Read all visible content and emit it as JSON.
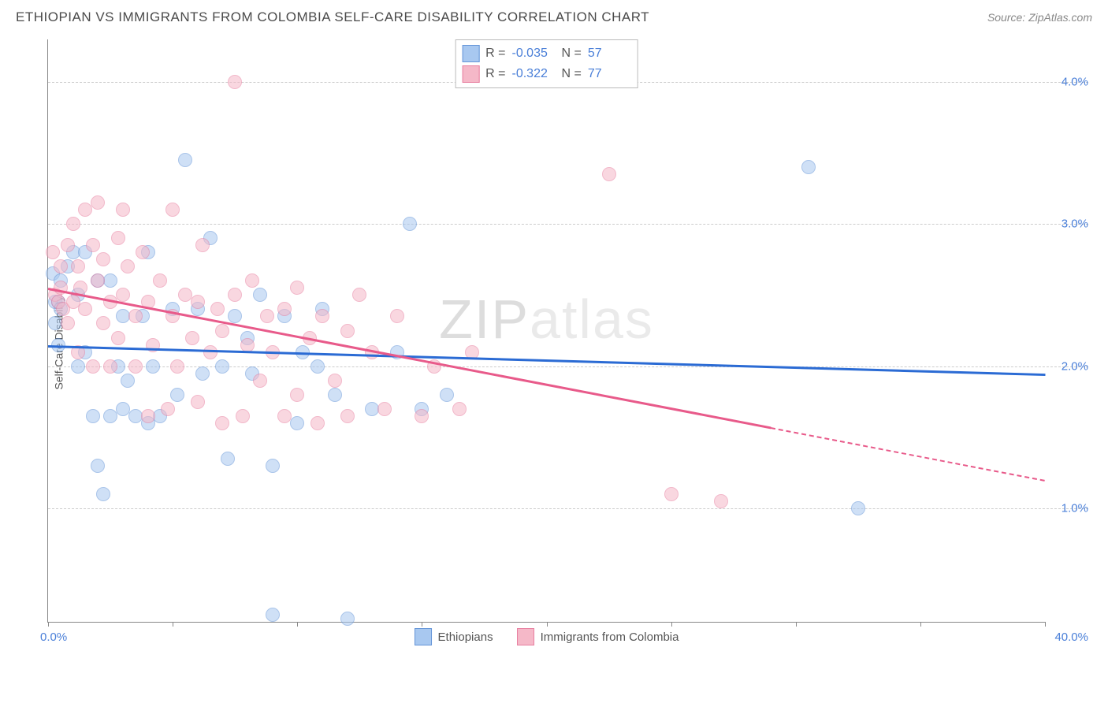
{
  "title": "ETHIOPIAN VS IMMIGRANTS FROM COLOMBIA SELF-CARE DISABILITY CORRELATION CHART",
  "source": "Source: ZipAtlas.com",
  "watermark": {
    "part1": "ZIP",
    "part2": "atlas"
  },
  "chart": {
    "type": "scatter",
    "y_axis_title": "Self-Care Disability",
    "xlim": [
      0,
      40
    ],
    "ylim": [
      0.2,
      4.3
    ],
    "x_ticks": [
      0,
      5,
      10,
      15,
      20,
      25,
      30,
      35,
      40
    ],
    "x_label_min": "0.0%",
    "x_label_max": "40.0%",
    "y_gridlines": [
      1.0,
      2.0,
      3.0,
      4.0
    ],
    "y_tick_labels": [
      "1.0%",
      "2.0%",
      "3.0%",
      "4.0%"
    ],
    "grid_color": "#cccccc",
    "axis_color": "#888888",
    "tick_label_color": "#4a7fd8",
    "background_color": "#ffffff",
    "point_radius": 9,
    "point_opacity": 0.55,
    "series": [
      {
        "name": "Ethiopians",
        "fill_color": "#a8c8f0",
        "stroke_color": "#6495d8",
        "trend_color": "#2b6bd4",
        "R": "-0.035",
        "N": "57",
        "trend": {
          "x1": 0,
          "y1": 2.15,
          "x2": 40,
          "y2": 1.95,
          "dash_from_x": null
        },
        "points": [
          [
            0.2,
            2.65
          ],
          [
            0.3,
            2.45
          ],
          [
            0.3,
            2.3
          ],
          [
            0.4,
            2.15
          ],
          [
            0.4,
            2.45
          ],
          [
            0.5,
            2.4
          ],
          [
            0.8,
            2.7
          ],
          [
            1.0,
            2.8
          ],
          [
            1.2,
            2.0
          ],
          [
            1.2,
            2.5
          ],
          [
            1.5,
            2.1
          ],
          [
            1.5,
            2.8
          ],
          [
            1.8,
            1.65
          ],
          [
            2.0,
            2.6
          ],
          [
            2.0,
            1.3
          ],
          [
            2.2,
            1.1
          ],
          [
            2.5,
            1.65
          ],
          [
            2.5,
            2.6
          ],
          [
            2.8,
            2.0
          ],
          [
            3.0,
            1.7
          ],
          [
            3.0,
            2.35
          ],
          [
            3.2,
            1.9
          ],
          [
            3.5,
            1.65
          ],
          [
            3.8,
            2.35
          ],
          [
            4.0,
            2.8
          ],
          [
            4.0,
            1.6
          ],
          [
            4.2,
            2.0
          ],
          [
            4.5,
            1.65
          ],
          [
            5.0,
            2.4
          ],
          [
            5.2,
            1.8
          ],
          [
            5.5,
            3.45
          ],
          [
            6.0,
            2.4
          ],
          [
            6.2,
            1.95
          ],
          [
            6.5,
            2.9
          ],
          [
            7.0,
            2.0
          ],
          [
            7.2,
            1.35
          ],
          [
            7.5,
            2.35
          ],
          [
            8.0,
            2.2
          ],
          [
            8.2,
            1.95
          ],
          [
            8.5,
            2.5
          ],
          [
            9.0,
            1.3
          ],
          [
            9.0,
            0.25
          ],
          [
            9.5,
            2.35
          ],
          [
            10.0,
            1.6
          ],
          [
            10.2,
            2.1
          ],
          [
            10.8,
            2.0
          ],
          [
            11.0,
            2.4
          ],
          [
            11.5,
            1.8
          ],
          [
            12.0,
            0.22
          ],
          [
            13.0,
            1.7
          ],
          [
            14.0,
            2.1
          ],
          [
            14.5,
            3.0
          ],
          [
            15.0,
            1.7
          ],
          [
            16.0,
            1.8
          ],
          [
            30.5,
            3.4
          ],
          [
            32.5,
            1.0
          ],
          [
            0.5,
            2.6
          ]
        ]
      },
      {
        "name": "Immigrants from Colombia",
        "fill_color": "#f5b8c8",
        "stroke_color": "#e87fa0",
        "trend_color": "#e85a8a",
        "R": "-0.322",
        "N": "77",
        "trend": {
          "x1": 0,
          "y1": 2.55,
          "x2": 40,
          "y2": 1.2,
          "dash_from_x": 29
        },
        "points": [
          [
            0.2,
            2.8
          ],
          [
            0.3,
            2.5
          ],
          [
            0.4,
            2.45
          ],
          [
            0.5,
            2.7
          ],
          [
            0.6,
            2.4
          ],
          [
            0.8,
            2.85
          ],
          [
            1.0,
            2.45
          ],
          [
            1.0,
            3.0
          ],
          [
            1.2,
            2.7
          ],
          [
            1.2,
            2.1
          ],
          [
            1.5,
            3.1
          ],
          [
            1.5,
            2.4
          ],
          [
            1.8,
            2.85
          ],
          [
            1.8,
            2.0
          ],
          [
            2.0,
            2.6
          ],
          [
            2.0,
            3.15
          ],
          [
            2.2,
            2.3
          ],
          [
            2.2,
            2.75
          ],
          [
            2.5,
            2.45
          ],
          [
            2.5,
            2.0
          ],
          [
            2.8,
            2.9
          ],
          [
            2.8,
            2.2
          ],
          [
            3.0,
            2.5
          ],
          [
            3.0,
            3.1
          ],
          [
            3.2,
            2.7
          ],
          [
            3.5,
            2.35
          ],
          [
            3.5,
            2.0
          ],
          [
            3.8,
            2.8
          ],
          [
            4.0,
            1.65
          ],
          [
            4.0,
            2.45
          ],
          [
            4.2,
            2.15
          ],
          [
            4.5,
            2.6
          ],
          [
            4.8,
            1.7
          ],
          [
            5.0,
            2.35
          ],
          [
            5.0,
            3.1
          ],
          [
            5.2,
            2.0
          ],
          [
            5.5,
            2.5
          ],
          [
            5.8,
            2.2
          ],
          [
            6.0,
            2.45
          ],
          [
            6.0,
            1.75
          ],
          [
            6.2,
            2.85
          ],
          [
            6.5,
            2.1
          ],
          [
            6.8,
            2.4
          ],
          [
            7.0,
            1.6
          ],
          [
            7.0,
            2.25
          ],
          [
            7.5,
            2.5
          ],
          [
            7.5,
            4.0
          ],
          [
            7.8,
            1.65
          ],
          [
            8.0,
            2.15
          ],
          [
            8.2,
            2.6
          ],
          [
            8.5,
            1.9
          ],
          [
            8.8,
            2.35
          ],
          [
            9.0,
            2.1
          ],
          [
            9.5,
            1.65
          ],
          [
            9.5,
            2.4
          ],
          [
            10.0,
            1.8
          ],
          [
            10.0,
            2.55
          ],
          [
            10.5,
            2.2
          ],
          [
            10.8,
            1.6
          ],
          [
            11.0,
            2.35
          ],
          [
            11.5,
            1.9
          ],
          [
            12.0,
            2.25
          ],
          [
            12.0,
            1.65
          ],
          [
            12.5,
            2.5
          ],
          [
            13.0,
            2.1
          ],
          [
            13.5,
            1.7
          ],
          [
            14.0,
            2.35
          ],
          [
            15.0,
            1.65
          ],
          [
            15.5,
            2.0
          ],
          [
            16.5,
            1.7
          ],
          [
            17.0,
            2.1
          ],
          [
            25.0,
            1.1
          ],
          [
            27.0,
            1.05
          ],
          [
            22.5,
            3.35
          ],
          [
            0.5,
            2.55
          ],
          [
            0.8,
            2.3
          ],
          [
            1.3,
            2.55
          ]
        ]
      }
    ]
  },
  "legend_top": {
    "rows": [
      {
        "swatch_fill": "#a8c8f0",
        "swatch_border": "#6495d8",
        "r_label": "R =",
        "r_val": "-0.035",
        "n_label": "N =",
        "n_val": "57"
      },
      {
        "swatch_fill": "#f5b8c8",
        "swatch_border": "#e87fa0",
        "r_label": "R =",
        "r_val": "-0.322",
        "n_label": "N =",
        "n_val": "77"
      }
    ]
  },
  "legend_bottom": {
    "items": [
      {
        "swatch_fill": "#a8c8f0",
        "swatch_border": "#6495d8",
        "label": "Ethiopians"
      },
      {
        "swatch_fill": "#f5b8c8",
        "swatch_border": "#e87fa0",
        "label": "Immigrants from Colombia"
      }
    ]
  }
}
